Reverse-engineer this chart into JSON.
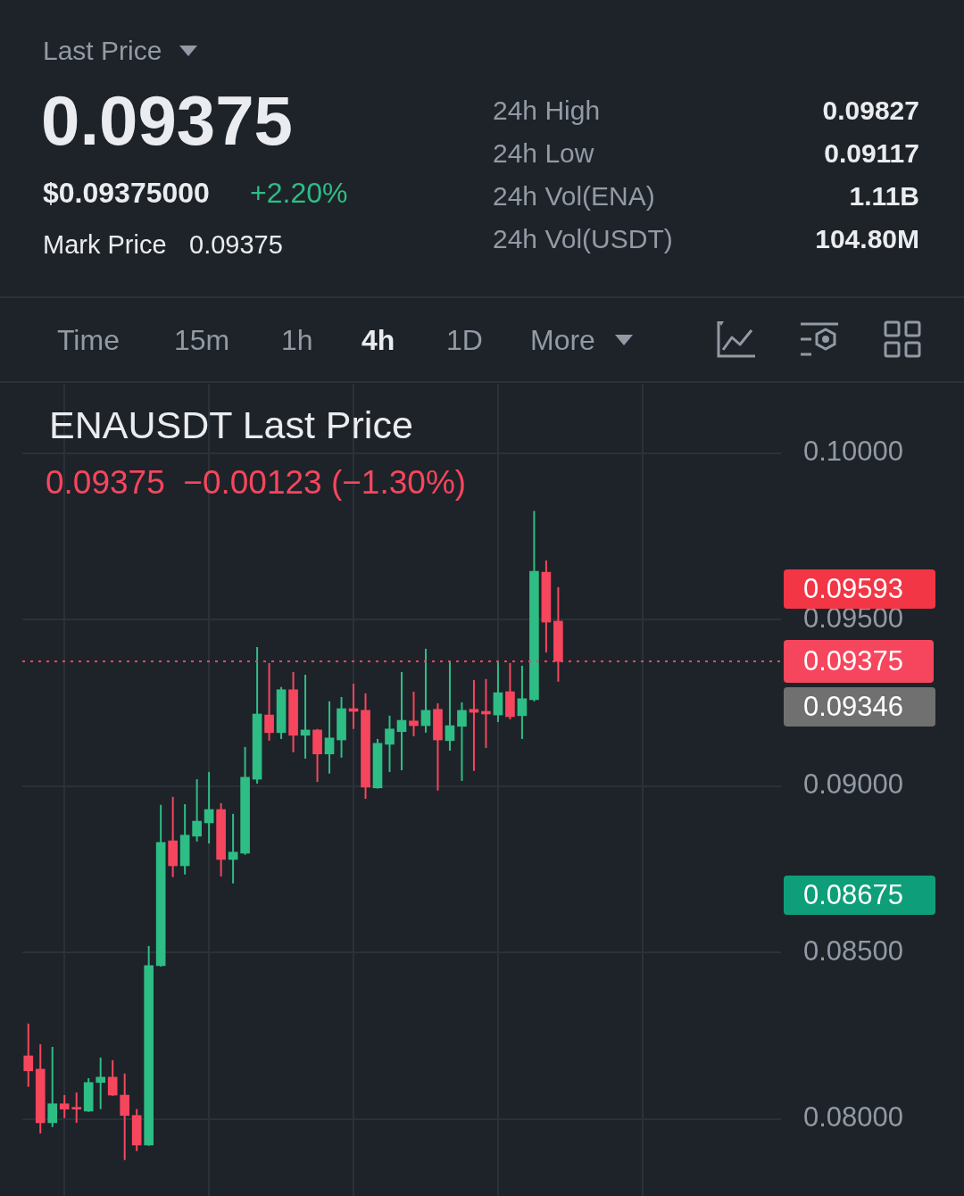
{
  "chart_data": {
    "type": "candlestick",
    "title": "ENAUSDT Last Price",
    "subtitle": "0.09375  −0.00123 (−1.30%)",
    "categories": [
      null,
      null,
      null,
      null,
      null,
      null,
      null,
      null,
      null,
      null,
      null,
      null,
      null,
      null,
      null,
      null,
      null,
      null,
      null,
      null,
      null,
      null,
      null,
      null,
      null,
      null,
      null,
      null,
      null,
      null,
      null,
      null,
      null,
      null,
      null,
      null,
      null,
      null,
      null,
      null,
      null,
      null,
      null,
      null,
      null,
      null,
      null,
      null,
      null,
      null,
      null,
      null,
      null,
      null,
      null,
      null,
      null,
      null,
      null,
      null,
      null,
      null,
      null
    ],
    "ohlc": [
      [
        0.0819,
        0.08287,
        0.08097,
        0.08145
      ],
      [
        0.0815,
        0.08225,
        0.07957,
        0.07989
      ],
      [
        0.07989,
        0.08217,
        0.07976,
        0.08046
      ],
      [
        0.08046,
        0.08072,
        0.08003,
        0.0803
      ],
      [
        0.08035,
        0.0808,
        0.07989,
        0.0803
      ],
      [
        0.08024,
        0.08123,
        0.08022,
        0.0811
      ],
      [
        0.0811,
        0.08185,
        0.0803,
        0.08126
      ],
      [
        0.08126,
        0.08177,
        0.0807,
        0.08072
      ],
      [
        0.08072,
        0.08137,
        0.07877,
        0.08011
      ],
      [
        0.08011,
        0.0803,
        0.07904,
        0.07922
      ],
      [
        0.07922,
        0.0852,
        0.0792,
        0.08461
      ],
      [
        0.08461,
        0.08944,
        0.08458,
        0.08831
      ],
      [
        0.08836,
        0.08968,
        0.08727,
        0.08761
      ],
      [
        0.08761,
        0.08946,
        0.08735,
        0.08853
      ],
      [
        0.0885,
        0.09021,
        0.08834,
        0.08895
      ],
      [
        0.0889,
        0.09043,
        0.08828,
        0.0893
      ],
      [
        0.0893,
        0.08949,
        0.08729,
        0.0878
      ],
      [
        0.0878,
        0.08917,
        0.08708,
        0.08802
      ],
      [
        0.08799,
        0.09118,
        0.08794,
        0.09027
      ],
      [
        0.09021,
        0.09418,
        0.09008,
        0.09217
      ],
      [
        0.09214,
        0.0937,
        0.09137,
        0.09161
      ],
      [
        0.09161,
        0.09298,
        0.09142,
        0.0929
      ],
      [
        0.0929,
        0.09343,
        0.09102,
        0.09153
      ],
      [
        0.09153,
        0.09335,
        0.09083,
        0.09169
      ],
      [
        0.09169,
        0.09172,
        0.09013,
        0.09097
      ],
      [
        0.09097,
        0.09255,
        0.09038,
        0.09145
      ],
      [
        0.09139,
        0.09268,
        0.09086,
        0.09233
      ],
      [
        0.09233,
        0.09308,
        0.09172,
        0.09225
      ],
      [
        0.09228,
        0.09279,
        0.08962,
        0.08997
      ],
      [
        0.08995,
        0.09142,
        0.08993,
        0.09129
      ],
      [
        0.09126,
        0.09212,
        0.09043,
        0.09172
      ],
      [
        0.09164,
        0.09343,
        0.09048,
        0.09198
      ],
      [
        0.09196,
        0.09284,
        0.0915,
        0.09182
      ],
      [
        0.09182,
        0.09413,
        0.09161,
        0.09228
      ],
      [
        0.09231,
        0.09249,
        0.08987,
        0.09139
      ],
      [
        0.09137,
        0.09378,
        0.09107,
        0.09182
      ],
      [
        0.0918,
        0.09252,
        0.09016,
        0.09228
      ],
      [
        0.09231,
        0.09319,
        0.09046,
        0.09222
      ],
      [
        0.09225,
        0.09322,
        0.09115,
        0.09217
      ],
      [
        0.09214,
        0.09378,
        0.09193,
        0.09281
      ],
      [
        0.09284,
        0.0937,
        0.09201,
        0.09209
      ],
      [
        0.09212,
        0.09362,
        0.09142,
        0.09263
      ],
      [
        0.0926,
        0.09827,
        0.09255,
        0.09646
      ],
      [
        0.09643,
        0.09678,
        0.09402,
        0.09493
      ],
      [
        0.09496,
        0.09598,
        0.09314,
        0.09375
      ],
      null,
      null,
      null,
      null,
      null,
      null,
      null,
      null,
      null,
      null,
      null,
      null,
      null,
      null,
      null,
      null,
      null,
      null
    ],
    "ylim": [
      0.07769,
      0.10209
    ],
    "yticks": [
      {
        "value": 0.08,
        "label": "0.08000"
      },
      {
        "value": 0.085,
        "label": "0.08500"
      },
      {
        "value": 0.09,
        "label": "0.09000"
      },
      {
        "value": 0.095,
        "label": "0.09500"
      },
      {
        "value": 0.1,
        "label": "0.10000"
      }
    ],
    "grid": true,
    "tick_labels": "y",
    "ref_lines": [
      {
        "axis": "y",
        "value": 0.09375,
        "label": "0.09375",
        "color": "#f6465d",
        "line_style": "dotted"
      }
    ],
    "annotations": [
      "Last Price",
      "0.09375",
      "$0.09375000",
      "+2.20%",
      "Mark Price",
      "0.09375",
      "24h High",
      "0.09827",
      "24h Low",
      "0.09117",
      "24h Vol(ENA)",
      "1.11B",
      "24h Vol(USDT)",
      "104.80M",
      "Time",
      "15m",
      "1h",
      "4h",
      "1D",
      "More",
      "0.09593",
      "0.09346",
      "0.08675"
    ]
  }
}
